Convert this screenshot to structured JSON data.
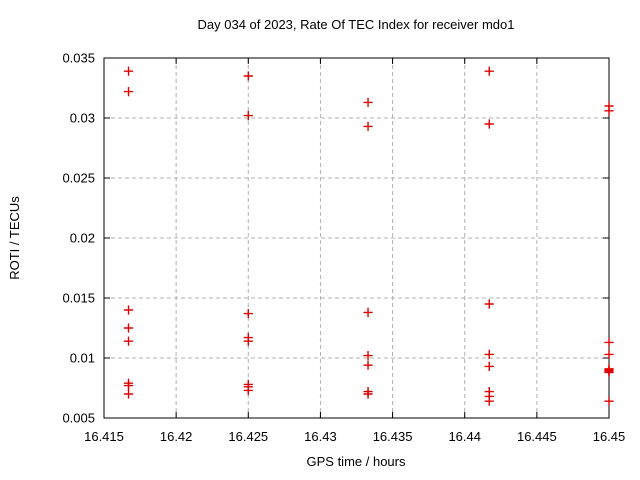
{
  "chart_data": {
    "type": "scatter",
    "title": "Day 034 of 2023, Rate Of TEC Index for receiver mdo1",
    "xlabel": "GPS time / hours",
    "ylabel": "ROTI / TECUs",
    "xlim": [
      16.415,
      16.45
    ],
    "ylim": [
      0.005,
      0.035
    ],
    "xticks": [
      16.415,
      16.42,
      16.425,
      16.43,
      16.435,
      16.44,
      16.445,
      16.45
    ],
    "xtick_labels": [
      "16.415",
      "16.42",
      "16.425",
      "16.43",
      "16.435",
      "16.44",
      "16.445",
      "16.45"
    ],
    "yticks": [
      0.005,
      0.01,
      0.015,
      0.02,
      0.025,
      0.03,
      0.035
    ],
    "ytick_labels": [
      "0.005",
      "0.01",
      "0.015",
      "0.02",
      "0.025",
      "0.03",
      "0.035"
    ],
    "grid": true,
    "legend": "none",
    "marker": "plus",
    "marker_color": "#e00000",
    "grid_color": "#b0b0b0",
    "border_color": "#000000",
    "series": [
      {
        "name": "ROTI",
        "points": [
          [
            16.4167,
            0.0339
          ],
          [
            16.4167,
            0.0322
          ],
          [
            16.4167,
            0.014
          ],
          [
            16.4167,
            0.0125
          ],
          [
            16.4167,
            0.0114
          ],
          [
            16.4167,
            0.0079
          ],
          [
            16.4167,
            0.0077
          ],
          [
            16.4167,
            0.007
          ],
          [
            16.425,
            0.0335
          ],
          [
            16.425,
            0.0302
          ],
          [
            16.425,
            0.0137
          ],
          [
            16.425,
            0.0117
          ],
          [
            16.425,
            0.0114
          ],
          [
            16.425,
            0.0078
          ],
          [
            16.425,
            0.0076
          ],
          [
            16.425,
            0.0073
          ],
          [
            16.4333,
            0.0313
          ],
          [
            16.4333,
            0.0293
          ],
          [
            16.4333,
            0.0138
          ],
          [
            16.4333,
            0.0102
          ],
          [
            16.4333,
            0.0094
          ],
          [
            16.4333,
            0.0072
          ],
          [
            16.4333,
            0.007
          ],
          [
            16.4417,
            0.0339
          ],
          [
            16.4417,
            0.0295
          ],
          [
            16.4417,
            0.0145
          ],
          [
            16.4417,
            0.0103
          ],
          [
            16.4417,
            0.0093
          ],
          [
            16.4417,
            0.0072
          ],
          [
            16.4417,
            0.0068
          ],
          [
            16.4417,
            0.0064
          ],
          [
            16.45,
            0.031
          ],
          [
            16.45,
            0.0306
          ],
          [
            16.45,
            0.0113
          ],
          [
            16.45,
            0.0103
          ],
          [
            16.45,
            0.0091
          ],
          [
            16.45,
            0.009
          ],
          [
            16.45,
            0.0089
          ],
          [
            16.45,
            0.0088
          ],
          [
            16.45,
            0.0064
          ]
        ]
      }
    ]
  }
}
